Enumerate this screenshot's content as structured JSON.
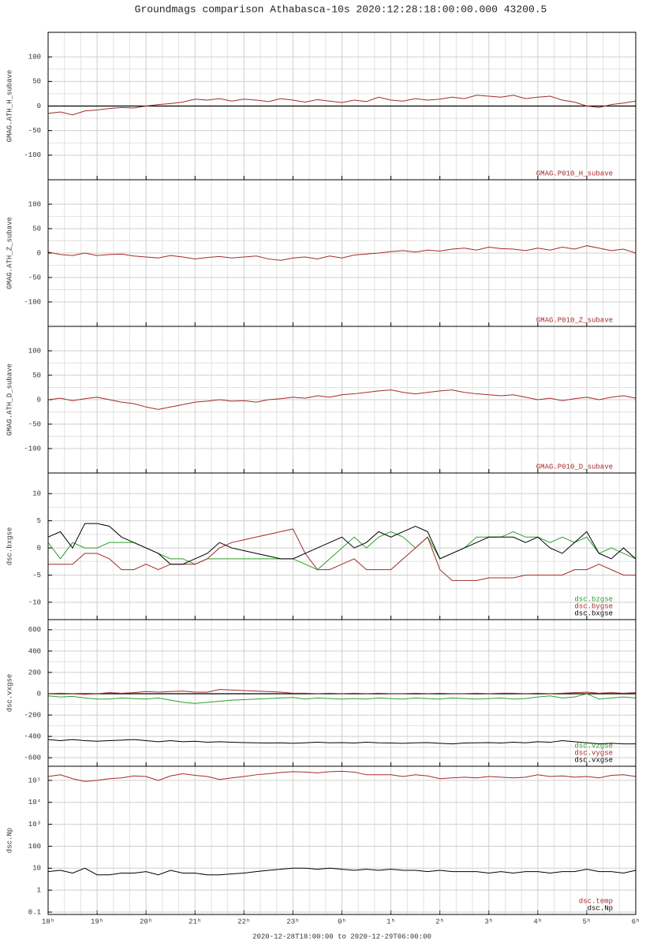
{
  "chart_data": [
    {
      "type": "line",
      "title": "Groundmags comparison Athabasca-10s 2020:12:28:18:00:00.000 43200.5",
      "y_label": "GMAG.ATH_H_subave",
      "x": [
        18,
        18.25,
        18.5,
        18.75,
        19,
        19.25,
        19.5,
        19.75,
        20,
        20.25,
        20.5,
        20.75,
        21,
        21.25,
        21.5,
        21.75,
        22,
        22.25,
        22.5,
        22.75,
        23,
        23.25,
        23.5,
        23.75,
        24,
        24.25,
        24.5,
        24.75,
        25,
        25.25,
        25.5,
        25.75,
        26,
        26.25,
        26.5,
        26.75,
        27,
        27.25,
        27.5,
        27.75,
        28,
        28.25,
        28.5,
        28.75,
        29,
        29.25,
        29.5,
        29.75,
        30
      ],
      "series": [
        {
          "name": "GMAG.P010_H_subave",
          "color": "#a52a2a",
          "values": [
            -15,
            -12,
            -18,
            -10,
            -8,
            -5,
            -3,
            -4,
            0,
            3,
            5,
            8,
            14,
            12,
            15,
            10,
            14,
            12,
            9,
            15,
            12,
            8,
            13,
            10,
            7,
            12,
            9,
            18,
            12,
            10,
            15,
            12,
            14,
            18,
            15,
            22,
            20,
            18,
            22,
            15,
            18,
            20,
            12,
            8,
            0,
            -3,
            3,
            6,
            10
          ]
        }
      ],
      "xlim": [
        18,
        30
      ],
      "xticks": [
        18,
        19,
        20,
        21,
        22,
        23,
        24,
        25,
        26,
        27,
        28,
        29,
        30
      ],
      "ylim": [
        -150,
        150
      ],
      "yticks": [
        -100,
        -50,
        0,
        50,
        100
      ],
      "hline": 0,
      "grid": true,
      "x_minor_divisions": 3,
      "y_minor_divisions": 2
    },
    {
      "type": "line",
      "y_label": "GMAG.ATH_Z_subave",
      "x": [
        18,
        18.25,
        18.5,
        18.75,
        19,
        19.25,
        19.5,
        19.75,
        20,
        20.25,
        20.5,
        20.75,
        21,
        21.25,
        21.5,
        21.75,
        22,
        22.25,
        22.5,
        22.75,
        23,
        23.25,
        23.5,
        23.75,
        24,
        24.25,
        24.5,
        24.75,
        25,
        25.25,
        25.5,
        25.75,
        26,
        26.25,
        26.5,
        26.75,
        27,
        27.25,
        27.5,
        27.75,
        28,
        28.25,
        28.5,
        28.75,
        29,
        29.25,
        29.5,
        29.75,
        30
      ],
      "series": [
        {
          "name": "GMAG.P010_Z_subave",
          "color": "#a52a2a",
          "values": [
            2,
            -3,
            -5,
            0,
            -5,
            -3,
            -2,
            -6,
            -8,
            -10,
            -5,
            -8,
            -12,
            -9,
            -7,
            -10,
            -8,
            -6,
            -12,
            -15,
            -10,
            -8,
            -12,
            -6,
            -10,
            -4,
            -2,
            0,
            3,
            5,
            2,
            6,
            4,
            8,
            10,
            6,
            12,
            9,
            8,
            5,
            10,
            6,
            12,
            8,
            15,
            10,
            5,
            8,
            0
          ]
        }
      ],
      "xlim": [
        18,
        30
      ],
      "xticks": [
        18,
        19,
        20,
        21,
        22,
        23,
        24,
        25,
        26,
        27,
        28,
        29,
        30
      ],
      "ylim": [
        -150,
        150
      ],
      "yticks": [
        -100,
        -50,
        0,
        50,
        100
      ],
      "grid": true,
      "x_minor_divisions": 3,
      "y_minor_divisions": 2
    },
    {
      "type": "line",
      "y_label": "GMAG.ATH_D_subave",
      "x": [
        18,
        18.25,
        18.5,
        18.75,
        19,
        19.25,
        19.5,
        19.75,
        20,
        20.25,
        20.5,
        20.75,
        21,
        21.25,
        21.5,
        21.75,
        22,
        22.25,
        22.5,
        22.75,
        23,
        23.25,
        23.5,
        23.75,
        24,
        24.25,
        24.5,
        24.75,
        25,
        25.25,
        25.5,
        25.75,
        26,
        26.25,
        26.5,
        26.75,
        27,
        27.25,
        27.5,
        27.75,
        28,
        28.25,
        28.5,
        28.75,
        29,
        29.25,
        29.5,
        29.75,
        30
      ],
      "series": [
        {
          "name": "GMAG.P010_D_subave",
          "color": "#a52a2a",
          "values": [
            0,
            3,
            -2,
            2,
            5,
            0,
            -5,
            -8,
            -15,
            -20,
            -15,
            -10,
            -5,
            -3,
            0,
            -3,
            -2,
            -5,
            0,
            2,
            5,
            3,
            8,
            5,
            10,
            12,
            15,
            18,
            20,
            15,
            12,
            15,
            18,
            20,
            15,
            12,
            10,
            8,
            10,
            5,
            0,
            3,
            -2,
            2,
            5,
            0,
            5,
            8,
            3
          ]
        }
      ],
      "xlim": [
        18,
        30
      ],
      "xticks": [
        18,
        19,
        20,
        21,
        22,
        23,
        24,
        25,
        26,
        27,
        28,
        29,
        30
      ],
      "ylim": [
        -150,
        150
      ],
      "yticks": [
        -100,
        -50,
        0,
        50,
        100
      ],
      "grid": true,
      "x_minor_divisions": 3,
      "y_minor_divisions": 2
    },
    {
      "type": "line",
      "y_label": "dsc.bxgse",
      "x": [
        18,
        18.25,
        18.5,
        18.75,
        19,
        19.25,
        19.5,
        19.75,
        20,
        20.25,
        20.5,
        20.75,
        21,
        21.25,
        21.5,
        21.75,
        22,
        22.25,
        22.5,
        22.75,
        23,
        23.25,
        23.5,
        23.75,
        24,
        24.25,
        24.5,
        24.75,
        25,
        25.25,
        25.5,
        25.75,
        26,
        26.25,
        26.5,
        26.75,
        27,
        27.25,
        27.5,
        27.75,
        28,
        28.25,
        28.5,
        28.75,
        29,
        29.25,
        29.5,
        29.75,
        30
      ],
      "series": [
        {
          "name": "dsc.bzgse",
          "color": "#2ca02c",
          "values": [
            1,
            -2,
            1,
            0,
            0,
            1,
            1,
            1,
            0,
            -1,
            -2,
            -2,
            -3,
            -2,
            -2,
            -2,
            -2,
            -2,
            -2,
            -2,
            -2,
            -3,
            -4,
            -2,
            0,
            2,
            0,
            2,
            3,
            2,
            0,
            2,
            -2,
            -1,
            0,
            2,
            2,
            2,
            3,
            2,
            2,
            1,
            2,
            1,
            2,
            -1,
            0,
            -1,
            -2
          ]
        },
        {
          "name": "dsc.bygse",
          "color": "#a52a2a",
          "values": [
            -3,
            -3,
            -3,
            -1,
            -1,
            -2,
            -4,
            -4,
            -3,
            -4,
            -3,
            -3,
            -3,
            -2,
            0,
            1,
            1.5,
            2,
            2.5,
            3,
            3.5,
            -1,
            -4,
            -4,
            -3,
            -2,
            -4,
            -4,
            -4,
            -2,
            0,
            2,
            -4,
            -6,
            -6,
            -6,
            -5.5,
            -5.5,
            -5.5,
            -5,
            -5,
            -5,
            -5,
            -4,
            -4,
            -3,
            -4,
            -5,
            -5
          ]
        },
        {
          "name": "dsc.bxgse",
          "color": "#000000",
          "values": [
            2,
            3,
            0,
            4.5,
            4.5,
            4,
            2,
            1,
            0,
            -1,
            -3,
            -3,
            -2,
            -1,
            1,
            0,
            -0.5,
            -1,
            -1.5,
            -2,
            -2,
            -1,
            0,
            1,
            2,
            0,
            1,
            3,
            2,
            3,
            4,
            3,
            -2,
            -1,
            0,
            1,
            2,
            2,
            2,
            1,
            2,
            0,
            -1,
            1,
            3,
            -1,
            -2,
            0,
            -2
          ]
        }
      ],
      "xlim": [
        18,
        30
      ],
      "xticks": [
        18,
        19,
        20,
        21,
        22,
        23,
        24,
        25,
        26,
        27,
        28,
        29,
        30
      ],
      "ylim": [
        -13.2,
        13.8
      ],
      "yticks": [
        -10,
        -5,
        0,
        5,
        10
      ],
      "grid": true,
      "x_minor_divisions": 3,
      "y_minor_divisions": 2
    },
    {
      "type": "line",
      "y_label": "dsc.vxgse",
      "x": [
        18,
        18.25,
        18.5,
        18.75,
        19,
        19.25,
        19.5,
        19.75,
        20,
        20.25,
        20.5,
        20.75,
        21,
        21.25,
        21.5,
        21.75,
        22,
        22.25,
        22.5,
        22.75,
        23,
        23.25,
        23.5,
        23.75,
        24,
        24.25,
        24.5,
        24.75,
        25,
        25.25,
        25.5,
        25.75,
        26,
        26.25,
        26.5,
        26.75,
        27,
        27.25,
        27.5,
        27.75,
        28,
        28.25,
        28.5,
        28.75,
        29,
        29.25,
        29.5,
        29.75,
        30
      ],
      "series": [
        {
          "name": "dsc.vzgse",
          "color": "#2ca02c",
          "values": [
            -20,
            -30,
            -25,
            -40,
            -50,
            -50,
            -40,
            -45,
            -50,
            -40,
            -60,
            -80,
            -90,
            -80,
            -70,
            -60,
            -55,
            -50,
            -45,
            -40,
            -35,
            -50,
            -40,
            -45,
            -50,
            -45,
            -50,
            -40,
            -45,
            -50,
            -40,
            -45,
            -50,
            -40,
            -45,
            -50,
            -45,
            -40,
            -50,
            -45,
            -30,
            -20,
            -40,
            -30,
            0,
            -50,
            -40,
            -30,
            -40
          ]
        },
        {
          "name": "dsc.vygse",
          "color": "#a52a2a",
          "values": [
            0,
            5,
            0,
            -5,
            0,
            10,
            5,
            10,
            20,
            15,
            20,
            25,
            15,
            15,
            40,
            35,
            30,
            25,
            20,
            15,
            5,
            5,
            0,
            5,
            0,
            5,
            0,
            5,
            0,
            0,
            5,
            0,
            5,
            0,
            0,
            5,
            0,
            5,
            5,
            0,
            5,
            0,
            5,
            10,
            15,
            5,
            10,
            5,
            10
          ]
        },
        {
          "name": "dsc.vxgse",
          "color": "#000000",
          "values": [
            -430,
            -440,
            -430,
            -440,
            -445,
            -440,
            -435,
            -430,
            -440,
            -450,
            -440,
            -450,
            -445,
            -455,
            -450,
            -455,
            -458,
            -460,
            -462,
            -460,
            -465,
            -460,
            -455,
            -460,
            -458,
            -462,
            -455,
            -460,
            -462,
            -465,
            -460,
            -458,
            -465,
            -470,
            -462,
            -460,
            -458,
            -462,
            -455,
            -460,
            -450,
            -455,
            -440,
            -450,
            -460,
            -470,
            -465,
            -470,
            -470
          ]
        }
      ],
      "xlim": [
        18,
        30
      ],
      "xticks": [
        18,
        19,
        20,
        21,
        22,
        23,
        24,
        25,
        26,
        27,
        28,
        29,
        30
      ],
      "ylim": [
        -680,
        695
      ],
      "yticks": [
        -600,
        -400,
        -200,
        0,
        200,
        400,
        600
      ],
      "hline": 0,
      "grid": true,
      "x_minor_divisions": 3,
      "y_minor_divisions": 2
    },
    {
      "type": "line",
      "y_label": "dsc.Np",
      "x_label": "2020-12-28T18:00:00 to 2020-12-29T06:00:00",
      "x": [
        18,
        18.25,
        18.5,
        18.75,
        19,
        19.25,
        19.5,
        19.75,
        20,
        20.25,
        20.5,
        20.75,
        21,
        21.25,
        21.5,
        21.75,
        22,
        22.25,
        22.5,
        22.75,
        23,
        23.25,
        23.5,
        23.75,
        24,
        24.25,
        24.5,
        24.75,
        25,
        25.25,
        25.5,
        25.75,
        26,
        26.25,
        26.5,
        26.75,
        27,
        27.25,
        27.5,
        27.75,
        28,
        28.25,
        28.5,
        28.75,
        29,
        29.25,
        29.5,
        29.75,
        30
      ],
      "series": [
        {
          "name": "dsc.temp",
          "color": "#a52a2a",
          "values": [
            150000,
            180000,
            120000,
            90000,
            100000,
            120000,
            130000,
            160000,
            150000,
            100000,
            160000,
            200000,
            170000,
            150000,
            110000,
            130000,
            150000,
            180000,
            200000,
            230000,
            250000,
            240000,
            220000,
            250000,
            260000,
            240000,
            180000,
            180000,
            180000,
            150000,
            180000,
            160000,
            120000,
            130000,
            140000,
            130000,
            150000,
            140000,
            130000,
            140000,
            180000,
            150000,
            160000,
            140000,
            150000,
            130000,
            170000,
            180000,
            150000
          ]
        },
        {
          "name": "dsc.Np",
          "color": "#000000",
          "values": [
            7,
            8,
            6,
            10,
            5,
            5,
            6,
            6,
            7,
            5,
            8,
            6,
            6,
            5,
            5,
            5.5,
            6,
            7,
            8,
            9,
            10,
            10,
            9,
            10,
            9,
            8,
            9,
            8,
            9,
            8,
            8,
            7,
            8,
            7,
            7,
            7,
            6,
            7,
            6,
            7,
            7,
            6,
            7,
            7,
            9,
            7,
            7,
            6,
            8
          ]
        }
      ],
      "xlim": [
        18,
        30
      ],
      "xticks": [
        {
          "value": 18,
          "label": "18ʰ"
        },
        {
          "value": 19,
          "label": "19ʰ"
        },
        {
          "value": 20,
          "label": "20ʰ"
        },
        {
          "value": 21,
          "label": "21ʰ"
        },
        {
          "value": 22,
          "label": "22ʰ"
        },
        {
          "value": 23,
          "label": "23ʰ"
        },
        {
          "value": 24,
          "label": "0ʰ"
        },
        {
          "value": 25,
          "label": "1ʰ"
        },
        {
          "value": 26,
          "label": "2ʰ"
        },
        {
          "value": 27,
          "label": "3ʰ"
        },
        {
          "value": 28,
          "label": "4ʰ"
        },
        {
          "value": 29,
          "label": "5ʰ"
        },
        {
          "value": 30,
          "label": "6ʰ"
        }
      ],
      "ylim": [
        0.078,
        440000
      ],
      "log_scale": true,
      "yticks": [
        0.1,
        1,
        10,
        100,
        {
          "value": 1000,
          "label": "10³"
        },
        {
          "value": 10000,
          "label": "10⁴"
        },
        {
          "value": 100000,
          "label": "10⁵"
        }
      ],
      "grid": true,
      "x_minor_divisions": 3
    }
  ]
}
